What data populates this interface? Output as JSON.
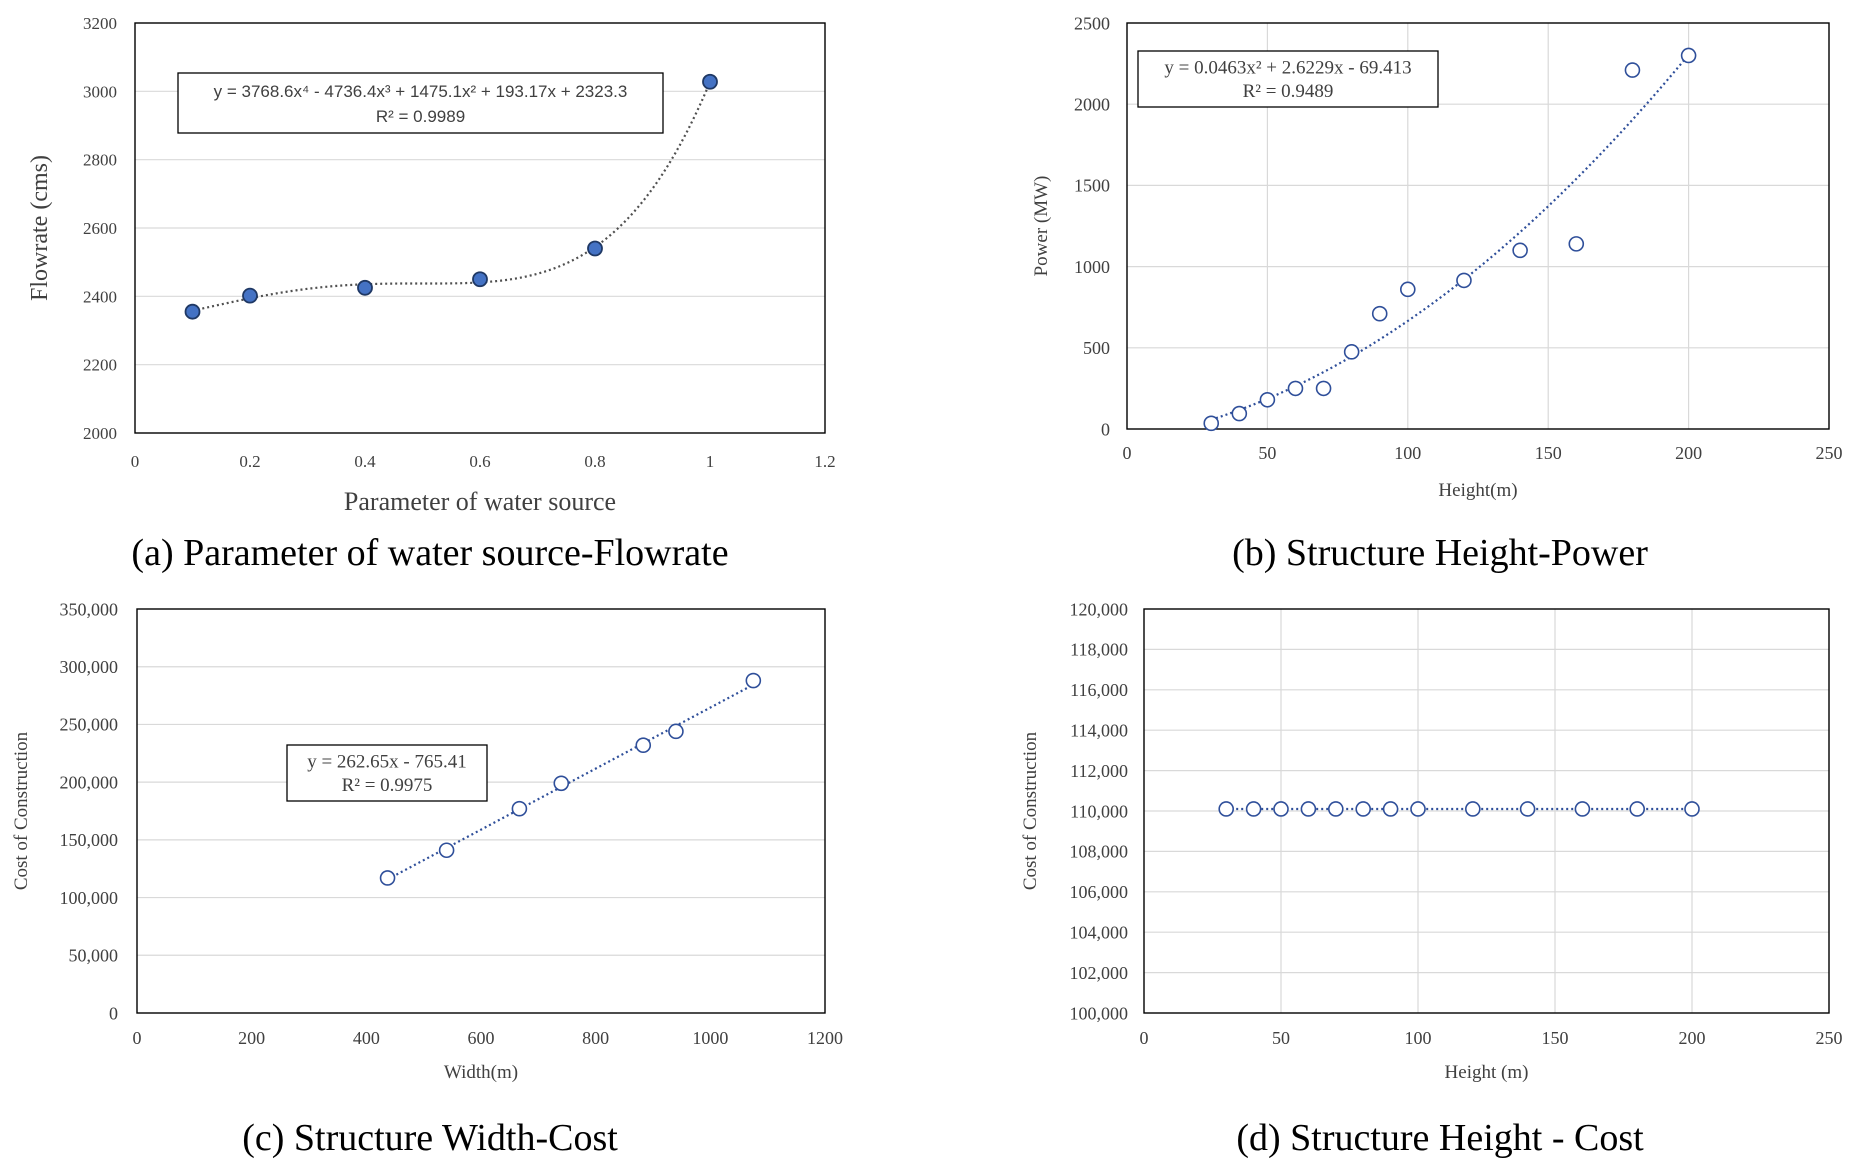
{
  "figure": {
    "captions": [
      "(a) Parameter of water source-Flowrate",
      "(b) Structure Height-Power",
      "(c) Structure Width-Cost",
      "(d) Structure Height - Cost"
    ]
  },
  "colors": {
    "marker_stroke": "#2f4f9a",
    "marker_fill_a": "#4472c4",
    "trend_a": "#505050",
    "trend_blue": "#2f4f9a",
    "grid": "#d9d9d9",
    "frame": "#000000"
  },
  "chart_data": [
    {
      "id": "a",
      "type": "scatter",
      "marker": "filled",
      "trendline": "poly4",
      "xlabel": "Parameter of water source",
      "ylabel": "Flowrate (cms)",
      "xlim": [
        0,
        1.2
      ],
      "ylim": [
        2000,
        3200
      ],
      "xticks": [
        "0",
        "0.2",
        "0.4",
        "0.6",
        "0.8",
        "1",
        "1.2"
      ],
      "yticks": [
        "2000",
        "2200",
        "2400",
        "2600",
        "2800",
        "3000",
        "3200"
      ],
      "grid": "horizontal",
      "equation": [
        "y = 3768.6x⁴ - 4736.4x³ + 1475.1x² + 193.17x + 2323.3",
        "R² = 0.9989"
      ],
      "points": [
        [
          0.1,
          2355
        ],
        [
          0.2,
          2402
        ],
        [
          0.4,
          2425
        ],
        [
          0.6,
          2450
        ],
        [
          0.8,
          2540
        ],
        [
          1.0,
          3028
        ]
      ]
    },
    {
      "id": "b",
      "type": "scatter",
      "marker": "open",
      "trendline": "poly2",
      "xlabel": "Height(m)",
      "ylabel": "Power (MW)",
      "xlim": [
        0,
        250
      ],
      "ylim": [
        0,
        2500
      ],
      "xticks": [
        "0",
        "50",
        "100",
        "150",
        "200",
        "250"
      ],
      "yticks": [
        "0",
        "500",
        "1000",
        "1500",
        "2000",
        "2500"
      ],
      "grid": "both",
      "equation": [
        "y = 0.0463x² + 2.6229x - 69.413",
        "R² = 0.9489"
      ],
      "points": [
        [
          30,
          35
        ],
        [
          40,
          95
        ],
        [
          50,
          180
        ],
        [
          60,
          250
        ],
        [
          70,
          250
        ],
        [
          80,
          475
        ],
        [
          90,
          710
        ],
        [
          100,
          860
        ],
        [
          120,
          915
        ],
        [
          140,
          1100
        ],
        [
          160,
          1140
        ],
        [
          180,
          2210
        ],
        [
          200,
          2300
        ]
      ]
    },
    {
      "id": "c",
      "type": "scatter",
      "marker": "open",
      "trendline": "linear",
      "xlabel": "Width(m)",
      "ylabel": "Cost of Construction",
      "xlim": [
        0,
        1200
      ],
      "ylim": [
        0,
        350000
      ],
      "xticks": [
        "0",
        "200",
        "400",
        "600",
        "800",
        "1000",
        "1200"
      ],
      "yticks": [
        "0",
        "50,000",
        "100,000",
        "150,000",
        "200,000",
        "250,000",
        "300,000",
        "350,000"
      ],
      "grid": "horizontal",
      "equation": [
        "y = 262.65x - 765.41",
        "R² = 0.9975"
      ],
      "points": [
        [
          437,
          117000
        ],
        [
          540,
          141000
        ],
        [
          667,
          177000
        ],
        [
          740,
          199000
        ],
        [
          883,
          232000
        ],
        [
          940,
          244000
        ],
        [
          1075,
          288000
        ]
      ]
    },
    {
      "id": "d",
      "type": "scatter",
      "marker": "open",
      "trendline": "flat",
      "xlabel": "Height (m)",
      "ylabel": "Cost of Construction",
      "xlim": [
        0,
        250
      ],
      "ylim": [
        100000,
        120000
      ],
      "xticks": [
        "0",
        "50",
        "100",
        "150",
        "200",
        "250"
      ],
      "yticks": [
        "100,000",
        "102,000",
        "104,000",
        "106,000",
        "108,000",
        "110,000",
        "112,000",
        "114,000",
        "116,000",
        "118,000",
        "120,000"
      ],
      "grid": "both",
      "equation": null,
      "points": [
        [
          30,
          110100
        ],
        [
          40,
          110100
        ],
        [
          50,
          110100
        ],
        [
          60,
          110100
        ],
        [
          70,
          110100
        ],
        [
          80,
          110100
        ],
        [
          90,
          110100
        ],
        [
          100,
          110100
        ],
        [
          120,
          110100
        ],
        [
          140,
          110100
        ],
        [
          160,
          110100
        ],
        [
          180,
          110100
        ],
        [
          200,
          110100
        ]
      ]
    }
  ]
}
